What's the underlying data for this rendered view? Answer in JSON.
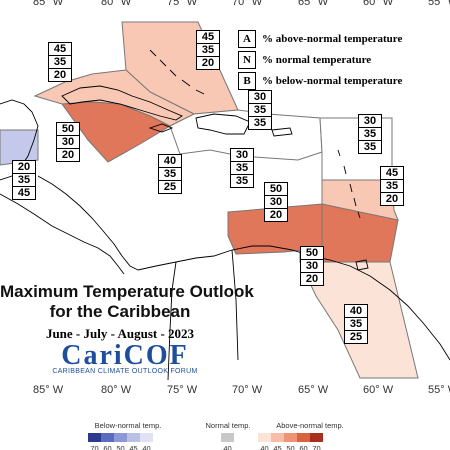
{
  "title": {
    "line1": "Maximum Temperature Outlook",
    "line2": "for the Caribbean",
    "season": "June - July - August - 2023"
  },
  "logo": {
    "name": "CariCOF",
    "subtitle": "CARIBBEAN CLIMATE OUTLOOK FORUM"
  },
  "longitude_labels": [
    "85° W",
    "80° W",
    "75° W",
    "70° W",
    "65° W",
    "60° W",
    "55° W"
  ],
  "key": [
    {
      "letter": "A",
      "text": "% above-normal temperature"
    },
    {
      "letter": "N",
      "text": "% normal temperature"
    },
    {
      "letter": "B",
      "text": "% below-normal temperature"
    }
  ],
  "boxes": [
    {
      "id": "bahamas-turks",
      "values": [
        "45",
        "35",
        "20"
      ]
    },
    {
      "id": "cuba",
      "values": [
        "45",
        "35",
        "20"
      ]
    },
    {
      "id": "hispaniola-north",
      "values": [
        "30",
        "35",
        "35"
      ]
    },
    {
      "id": "leeward-atlantic",
      "values": [
        "30",
        "35",
        "35"
      ]
    },
    {
      "id": "belize-west",
      "values": [
        "20",
        "35",
        "45"
      ]
    },
    {
      "id": "cayman-jamaica",
      "values": [
        "50",
        "30",
        "20"
      ]
    },
    {
      "id": "jamaica-south",
      "values": [
        "40",
        "35",
        "25"
      ]
    },
    {
      "id": "hispaniola-south",
      "values": [
        "30",
        "35",
        "35"
      ]
    },
    {
      "id": "windward",
      "values": [
        "45",
        "35",
        "20"
      ]
    },
    {
      "id": "caribbean-sea",
      "values": [
        "50",
        "30",
        "20"
      ]
    },
    {
      "id": "abc-islands",
      "values": [
        "50",
        "30",
        "20"
      ]
    },
    {
      "id": "guianas",
      "values": [
        "40",
        "35",
        "25"
      ]
    }
  ],
  "colorbar": {
    "groups": [
      {
        "label": "Below-normal temp.",
        "ticks": [
          "70",
          "60",
          "50",
          "45",
          "40"
        ],
        "colors": [
          "#2b3a8c",
          "#5b6cc0",
          "#8d99d6",
          "#b9c0e6",
          "#dfe2f4"
        ]
      },
      {
        "label": "Normal temp.",
        "ticks": [
          "40"
        ],
        "colors": [
          "#c8c8c8"
        ]
      },
      {
        "label": "Above-normal temp.",
        "ticks": [
          "40",
          "45",
          "50",
          "60",
          "70"
        ],
        "colors": [
          "#fbe3d8",
          "#f6bea8",
          "#ec9474",
          "#d8633f",
          "#a8301c"
        ]
      }
    ]
  },
  "region_colors": {
    "above_45": "#f8c8b4",
    "above_50": "#e0765a",
    "above_40": "#fbe3d8",
    "below_45": "#c4c8ea"
  }
}
